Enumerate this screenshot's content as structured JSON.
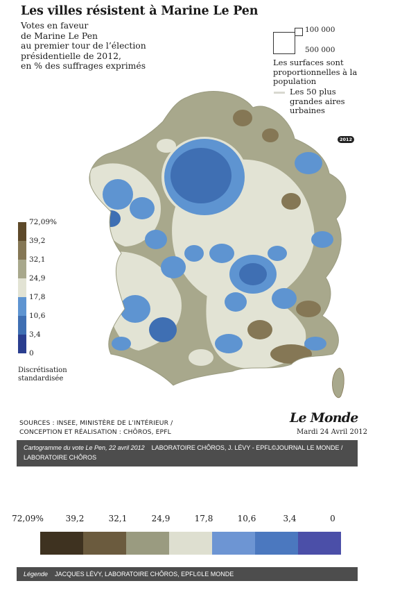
{
  "header": {
    "title": "Les villes résistent à Marine Le Pen",
    "subtitle": "Votes en faveur\nde Marine Le Pen\nau premier tour de l’élection\nprésidentielle de 2012,\nen % des suffrages exprimés"
  },
  "size_key": {
    "small_label": "100 000",
    "large_label": "500 000",
    "proportion_note": "Les surfaces sont proportionnelles à la population",
    "urban_note": "Les 50 plus grandes aires urbaines"
  },
  "year_badge": "2012",
  "colors": {
    "c0": "#2a3e8f",
    "c1": "#3f6fb3",
    "c2": "#5e94d1",
    "c3": "#e2e3d4",
    "c4": "#a8a88c",
    "c5": "#857755",
    "c6": "#5e4a2a",
    "h0": "#3e3220",
    "h1": "#6b5b3e",
    "h2": "#9a9b80",
    "h3": "#dedfd0",
    "h4": "#6d95d3",
    "h5": "#4b78bf",
    "h6": "#4b4fa8"
  },
  "vertical_legend": {
    "ticks": [
      "72,09%",
      "39,2",
      "32,1",
      "24,9",
      "17,8",
      "10,6",
      "3,4",
      "0"
    ],
    "note": "Discrétisation standardisée"
  },
  "sources": "SOURCES : INSEE, MINISTÈRE DE L’INTÉRIEUR /\nCONCEPTION ET RÉALISATION : CHÔROS, EPFL",
  "logo": "Le Monde",
  "date": "Mardi 24 Avril 2012",
  "caption_top": {
    "italic": "Cartogramme du vote Le Pen, 22 avril 2012",
    "rest": "LABORATOIRE CHÔROS, J. LÉVY - EPFL©JOURNAL LE MONDE / LABORATOIRE CHÔROS"
  },
  "horizontal_legend": {
    "labels": [
      "72,09%",
      "39,2",
      "32,1",
      "24,9",
      "17,8",
      "10,6",
      "3,4",
      "0"
    ]
  },
  "caption_bottom": {
    "italic": "Légende",
    "rest": "JACQUES LÉVY, LABORATOIRE CHÔROS, EPFL©LE MONDE"
  }
}
